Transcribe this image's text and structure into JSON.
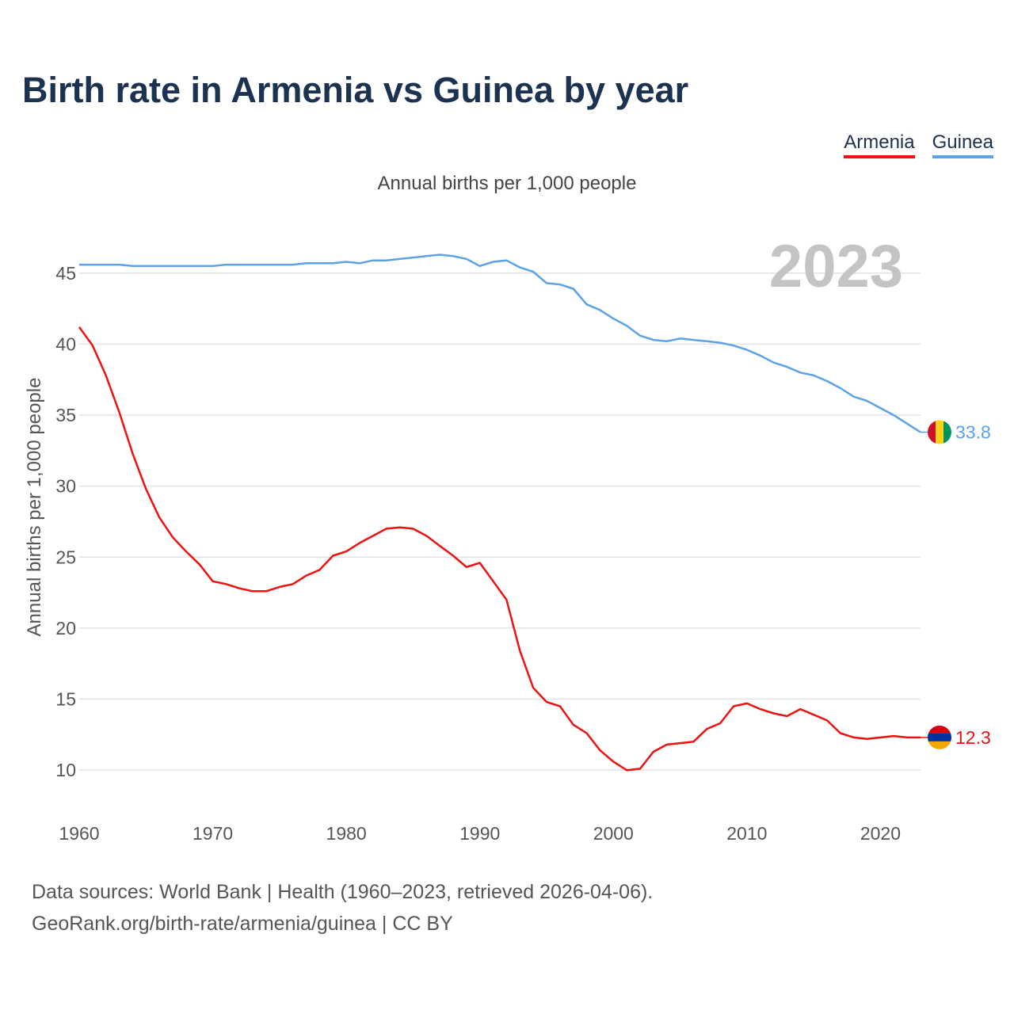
{
  "title": "Birth rate in Armenia vs Guinea by year",
  "subtitle": "Annual births per 1,000 people",
  "legend": [
    {
      "label": "Armenia",
      "color": "#ee1111"
    },
    {
      "label": "Guinea",
      "color": "#5ba3e6"
    }
  ],
  "footer": {
    "line1": "Data sources: World Bank | Health (1960–2023, retrieved 2026-04-06).",
    "line2": "GeoRank.org/birth-rate/armenia/guinea | CC BY"
  },
  "chart_data": {
    "type": "line",
    "title": "Birth rate in Armenia vs Guinea by year",
    "ylabel": "Annual births per 1,000 people",
    "xlabel": "",
    "year_label": "2023",
    "xlim": [
      1960,
      2023
    ],
    "ylim": [
      8,
      47.5
    ],
    "x_ticks": [
      1960,
      1970,
      1980,
      1990,
      2000,
      2010,
      2020
    ],
    "y_ticks": [
      10,
      15,
      20,
      25,
      30,
      35,
      40,
      45
    ],
    "x": [
      1960,
      1961,
      1962,
      1963,
      1964,
      1965,
      1966,
      1967,
      1968,
      1969,
      1970,
      1971,
      1972,
      1973,
      1974,
      1975,
      1976,
      1977,
      1978,
      1979,
      1980,
      1981,
      1982,
      1983,
      1984,
      1985,
      1986,
      1987,
      1988,
      1989,
      1990,
      1991,
      1992,
      1993,
      1994,
      1995,
      1996,
      1997,
      1998,
      1999,
      2000,
      2001,
      2002,
      2003,
      2004,
      2005,
      2006,
      2007,
      2008,
      2009,
      2010,
      2011,
      2012,
      2013,
      2014,
      2015,
      2016,
      2017,
      2018,
      2019,
      2020,
      2021,
      2022,
      2023
    ],
    "series": [
      {
        "name": "Guinea",
        "color": "#5ba3e6",
        "end_label": "33.8",
        "values": [
          45.6,
          45.6,
          45.6,
          45.6,
          45.5,
          45.5,
          45.5,
          45.5,
          45.5,
          45.5,
          45.5,
          45.6,
          45.6,
          45.6,
          45.6,
          45.6,
          45.6,
          45.7,
          45.7,
          45.7,
          45.8,
          45.7,
          45.9,
          45.9,
          46.0,
          46.1,
          46.2,
          46.3,
          46.2,
          46.0,
          45.5,
          45.8,
          45.9,
          45.4,
          45.1,
          44.3,
          44.2,
          43.9,
          42.8,
          42.4,
          41.8,
          41.3,
          40.6,
          40.3,
          40.2,
          40.4,
          40.3,
          40.2,
          40.1,
          39.9,
          39.6,
          39.2,
          38.7,
          38.4,
          38.0,
          37.8,
          37.4,
          36.9,
          36.3,
          36.0,
          35.5,
          35.0,
          34.4,
          33.8
        ]
      },
      {
        "name": "Armenia",
        "color": "#ee1111",
        "end_label": "12.3",
        "values": [
          41.2,
          39.9,
          37.8,
          35.2,
          32.3,
          29.8,
          27.8,
          26.4,
          25.4,
          24.5,
          23.3,
          23.1,
          22.8,
          22.6,
          22.6,
          22.9,
          23.1,
          23.7,
          24.1,
          25.1,
          25.4,
          26.0,
          26.5,
          27.0,
          27.1,
          27.0,
          26.5,
          25.8,
          25.1,
          24.3,
          24.6,
          23.3,
          22.0,
          18.4,
          15.8,
          14.8,
          14.5,
          13.2,
          12.6,
          11.4,
          10.6,
          10.0,
          10.1,
          11.3,
          11.8,
          11.9,
          12.0,
          12.9,
          13.3,
          14.5,
          14.7,
          14.3,
          14.0,
          13.8,
          14.3,
          13.9,
          13.5,
          12.6,
          12.3,
          12.2,
          12.3,
          12.4,
          12.3,
          12.3
        ]
      }
    ]
  }
}
